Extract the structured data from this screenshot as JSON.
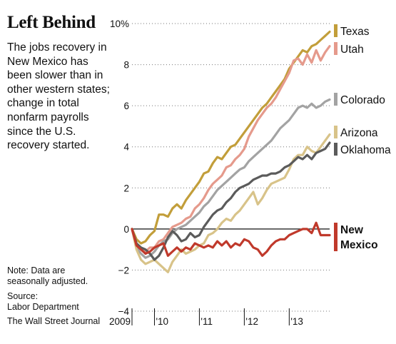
{
  "header": {
    "title": "Left Behind",
    "subtitle": "The jobs recovery in New Mexico has been slower than in other western states; change in total nonfarm payrolls since the U.S. recovery started."
  },
  "footer": {
    "note": "Note: Data are seasonally adjusted.",
    "source_label": "Source:",
    "source_name": "Labor Department",
    "credit": "The Wall Street Journal"
  },
  "chart_data": {
    "type": "line",
    "title": "Left Behind",
    "xlabel": "",
    "ylabel": "",
    "ylim": [
      -4,
      10
    ],
    "yticks": [
      -4,
      -2,
      0,
      2,
      4,
      6,
      8,
      10
    ],
    "ytick_labels": [
      "−4",
      "−2",
      "0",
      "2",
      "4",
      "6",
      "8",
      "10%"
    ],
    "xlim": [
      2009.5,
      2013.9
    ],
    "xticks": [
      2009.5,
      2010,
      2011,
      2012,
      2013
    ],
    "xtick_labels": [
      "2009",
      "'10",
      "'11",
      "'12",
      "'13"
    ],
    "grid": "horizontal-dotted",
    "legend": "right-end-of-lines",
    "series": [
      {
        "name": "Texas",
        "color": "#c29e3a",
        "x": [
          2009.5,
          2009.6,
          2009.7,
          2009.8,
          2009.9,
          2010.0,
          2010.1,
          2010.2,
          2010.3,
          2010.4,
          2010.5,
          2010.6,
          2010.7,
          2010.8,
          2010.9,
          2011.0,
          2011.1,
          2011.2,
          2011.3,
          2011.4,
          2011.5,
          2011.6,
          2011.7,
          2011.8,
          2011.9,
          2012.0,
          2012.1,
          2012.2,
          2012.3,
          2012.4,
          2012.5,
          2012.6,
          2012.7,
          2012.8,
          2012.9,
          2013.0,
          2013.1,
          2013.2,
          2013.3,
          2013.4,
          2013.5,
          2013.6,
          2013.7,
          2013.8,
          2013.9
        ],
        "values": [
          0,
          -0.5,
          -0.7,
          -0.6,
          -0.3,
          -0.1,
          0.7,
          0.7,
          0.6,
          1.0,
          1.2,
          1.0,
          1.4,
          1.7,
          2.0,
          2.3,
          2.7,
          2.8,
          3.2,
          3.5,
          3.4,
          3.7,
          4.0,
          4.1,
          4.4,
          4.7,
          5.0,
          5.3,
          5.6,
          5.9,
          6.1,
          6.4,
          6.7,
          7.0,
          7.3,
          7.8,
          8.1,
          8.4,
          8.7,
          8.6,
          8.9,
          9.0,
          9.2,
          9.4,
          9.6
        ]
      },
      {
        "name": "Utah",
        "color": "#e59a8c",
        "x": [
          2009.5,
          2009.6,
          2009.7,
          2009.8,
          2009.9,
          2010.0,
          2010.1,
          2010.2,
          2010.3,
          2010.4,
          2010.5,
          2010.6,
          2010.7,
          2010.8,
          2010.9,
          2011.0,
          2011.1,
          2011.2,
          2011.3,
          2011.4,
          2011.5,
          2011.6,
          2011.7,
          2011.8,
          2011.9,
          2012.0,
          2012.1,
          2012.2,
          2012.3,
          2012.4,
          2012.5,
          2012.6,
          2012.7,
          2012.8,
          2012.9,
          2013.0,
          2013.1,
          2013.2,
          2013.3,
          2013.4,
          2013.5,
          2013.6,
          2013.7,
          2013.8,
          2013.9
        ],
        "values": [
          0,
          -0.8,
          -1.0,
          -1.1,
          -0.9,
          -0.9,
          -0.6,
          -0.5,
          -0.2,
          0.1,
          0.2,
          0.3,
          0.5,
          0.6,
          1.0,
          1.2,
          1.5,
          1.9,
          2.2,
          2.4,
          2.6,
          3.0,
          3.1,
          3.4,
          3.6,
          3.9,
          4.5,
          4.9,
          5.3,
          5.6,
          5.9,
          6.1,
          6.4,
          6.8,
          7.2,
          7.6,
          8.2,
          8.3,
          8.0,
          8.5,
          8.1,
          8.7,
          8.2,
          8.6,
          8.9
        ]
      },
      {
        "name": "Colorado",
        "color": "#a3a3a3",
        "x": [
          2009.5,
          2009.6,
          2009.7,
          2009.8,
          2009.9,
          2010.0,
          2010.1,
          2010.2,
          2010.3,
          2010.4,
          2010.5,
          2010.6,
          2010.7,
          2010.8,
          2010.9,
          2011.0,
          2011.1,
          2011.2,
          2011.3,
          2011.4,
          2011.5,
          2011.6,
          2011.7,
          2011.8,
          2011.9,
          2012.0,
          2012.1,
          2012.2,
          2012.3,
          2012.4,
          2012.5,
          2012.6,
          2012.7,
          2012.8,
          2012.9,
          2013.0,
          2013.1,
          2013.2,
          2013.3,
          2013.4,
          2013.5,
          2013.6,
          2013.7,
          2013.8,
          2013.9
        ],
        "values": [
          0,
          -0.9,
          -1.2,
          -1.4,
          -1.3,
          -1.1,
          -0.8,
          -0.6,
          -0.5,
          -0.2,
          0.0,
          0.1,
          0.2,
          0.4,
          0.6,
          0.8,
          1.1,
          1.3,
          1.6,
          1.9,
          2.1,
          2.3,
          2.5,
          2.7,
          2.9,
          3.0,
          3.3,
          3.5,
          3.7,
          3.9,
          4.1,
          4.3,
          4.6,
          4.9,
          5.1,
          5.3,
          5.6,
          5.9,
          6.0,
          5.9,
          6.1,
          5.9,
          6.0,
          6.2,
          6.3
        ]
      },
      {
        "name": "Arizona",
        "color": "#d8c389",
        "x": [
          2009.5,
          2009.6,
          2009.7,
          2009.8,
          2009.9,
          2010.0,
          2010.1,
          2010.2,
          2010.3,
          2010.4,
          2010.5,
          2010.6,
          2010.7,
          2010.8,
          2010.9,
          2011.0,
          2011.1,
          2011.2,
          2011.3,
          2011.4,
          2011.5,
          2011.6,
          2011.7,
          2011.8,
          2011.9,
          2012.0,
          2012.1,
          2012.2,
          2012.3,
          2012.4,
          2012.5,
          2012.6,
          2012.7,
          2012.8,
          2012.9,
          2013.0,
          2013.1,
          2013.2,
          2013.3,
          2013.4,
          2013.5,
          2013.6,
          2013.7,
          2013.8,
          2013.9
        ],
        "values": [
          0,
          -1.0,
          -1.5,
          -1.7,
          -1.6,
          -1.5,
          -1.7,
          -1.9,
          -2.1,
          -1.6,
          -1.3,
          -1.0,
          -1.2,
          -1.1,
          -1.0,
          -0.8,
          -0.7,
          -0.3,
          -0.2,
          0.0,
          0.3,
          0.5,
          0.4,
          0.7,
          0.9,
          1.2,
          1.5,
          1.8,
          1.2,
          1.5,
          1.9,
          2.2,
          2.3,
          2.4,
          2.5,
          2.9,
          3.4,
          3.6,
          3.6,
          4.0,
          3.8,
          3.7,
          4.0,
          4.3,
          4.6
        ]
      },
      {
        "name": "Oklahoma",
        "color": "#5b5b5b",
        "x": [
          2009.5,
          2009.6,
          2009.7,
          2009.8,
          2009.9,
          2010.0,
          2010.1,
          2010.2,
          2010.3,
          2010.4,
          2010.5,
          2010.6,
          2010.7,
          2010.8,
          2010.9,
          2011.0,
          2011.1,
          2011.2,
          2011.3,
          2011.4,
          2011.5,
          2011.6,
          2011.7,
          2011.8,
          2011.9,
          2012.0,
          2012.1,
          2012.2,
          2012.3,
          2012.4,
          2012.5,
          2012.6,
          2012.7,
          2012.8,
          2012.9,
          2013.0,
          2013.1,
          2013.2,
          2013.3,
          2013.4,
          2013.5,
          2013.6,
          2013.7,
          2013.8,
          2013.9
        ],
        "values": [
          0,
          -0.7,
          -0.9,
          -1.0,
          -1.2,
          -1.5,
          -1.3,
          -0.9,
          -0.4,
          -0.1,
          -0.3,
          -0.6,
          -0.5,
          -0.2,
          -0.4,
          -0.3,
          0.1,
          0.4,
          0.7,
          0.9,
          1.0,
          1.3,
          1.5,
          1.8,
          2.0,
          2.1,
          2.2,
          2.4,
          2.5,
          2.6,
          2.6,
          2.7,
          2.7,
          2.8,
          3.0,
          3.1,
          3.3,
          3.5,
          3.4,
          3.6,
          3.4,
          3.7,
          3.8,
          3.9,
          4.2
        ]
      },
      {
        "name": "New Mexico",
        "color": "#c0392b",
        "x": [
          2009.5,
          2009.6,
          2009.7,
          2009.8,
          2009.9,
          2010.0,
          2010.1,
          2010.2,
          2010.3,
          2010.4,
          2010.5,
          2010.6,
          2010.7,
          2010.8,
          2010.9,
          2011.0,
          2011.1,
          2011.2,
          2011.3,
          2011.4,
          2011.5,
          2011.6,
          2011.7,
          2011.8,
          2011.9,
          2012.0,
          2012.1,
          2012.2,
          2012.3,
          2012.4,
          2012.5,
          2012.6,
          2012.7,
          2012.8,
          2012.9,
          2013.0,
          2013.1,
          2013.2,
          2013.3,
          2013.4,
          2013.5,
          2013.6,
          2013.7,
          2013.8,
          2013.9
        ],
        "values": [
          0,
          -0.8,
          -1.0,
          -1.2,
          -1.1,
          -0.9,
          -0.8,
          -0.7,
          -1.3,
          -1.1,
          -0.9,
          -1.1,
          -0.9,
          -1.0,
          -0.7,
          -0.8,
          -0.9,
          -0.8,
          -0.9,
          -0.6,
          -0.8,
          -0.6,
          -0.9,
          -0.7,
          -0.8,
          -0.5,
          -0.6,
          -0.9,
          -1.0,
          -1.3,
          -1.1,
          -0.8,
          -0.6,
          -0.5,
          -0.5,
          -0.3,
          -0.2,
          -0.1,
          0.0,
          0.0,
          -0.2,
          0.3,
          -0.3,
          -0.3,
          -0.3
        ]
      }
    ]
  }
}
